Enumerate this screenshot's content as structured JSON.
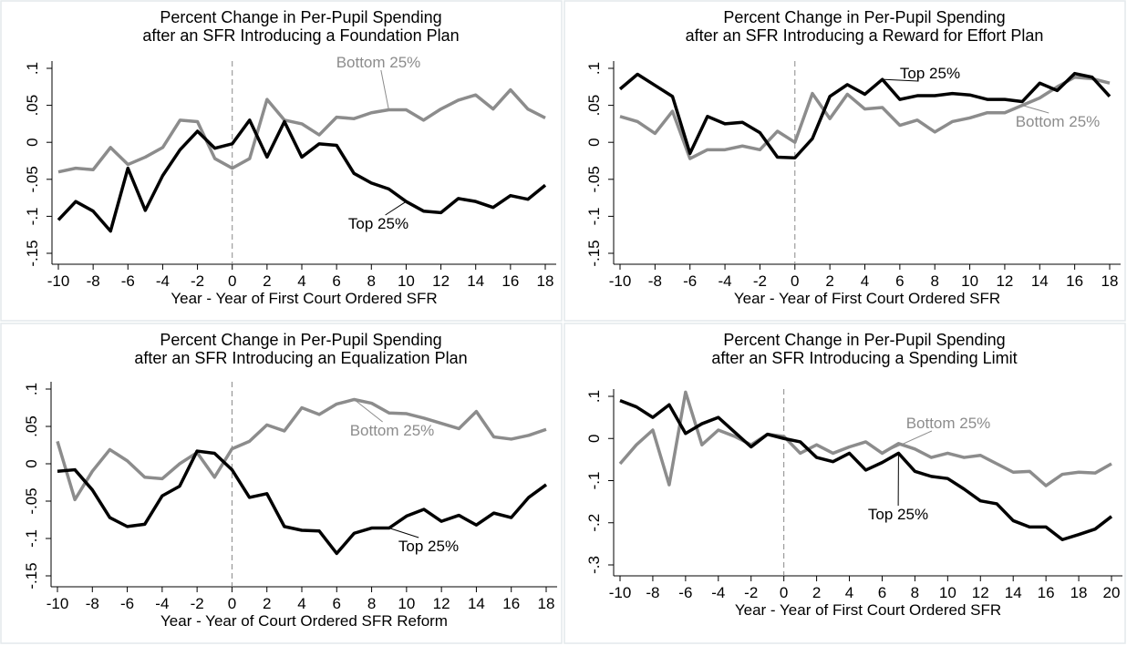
{
  "chart_data": [
    {
      "type": "line",
      "title": [
        "Percent Change in Per-Pupil Spending",
        "after an SFR Introducing a Foundation Plan"
      ],
      "xlabel": "Year - Year of First Court Ordered SFR",
      "x": [
        -10,
        -9,
        -8,
        -7,
        -6,
        -5,
        -4,
        -3,
        -2,
        -1,
        0,
        1,
        2,
        3,
        4,
        5,
        6,
        7,
        8,
        9,
        10,
        11,
        12,
        13,
        14,
        15,
        16,
        17,
        18
      ],
      "xlim": [
        -10,
        18
      ],
      "xticks": [
        -10,
        -8,
        -6,
        -4,
        -2,
        0,
        2,
        4,
        6,
        8,
        10,
        12,
        14,
        16,
        18
      ],
      "ylim": [
        -0.15,
        0.1
      ],
      "yticks": [
        {
          "value": -0.15,
          "label": "-.15"
        },
        {
          "value": -0.1,
          "label": "-.1"
        },
        {
          "value": -0.05,
          "label": "-.05"
        },
        0,
        {
          "value": 0.05,
          "label": ".05"
        },
        {
          "value": 0.1,
          "label": ".1"
        }
      ],
      "vline": 0,
      "series": [
        {
          "name": "Bottom 25%",
          "color": "#8c8c8c",
          "values": [
            -0.04,
            -0.035,
            -0.037,
            -0.007,
            -0.03,
            -0.02,
            -0.007,
            0.03,
            0.028,
            -0.022,
            -0.035,
            -0.022,
            0.058,
            0.03,
            0.025,
            0.01,
            0.034,
            0.032,
            0.04,
            0.044,
            0.044,
            0.03,
            0.045,
            0.057,
            0.064,
            0.045,
            0.071,
            0.045,
            0.033
          ]
        },
        {
          "name": "Top 25%",
          "color": "#000000",
          "values": [
            -0.105,
            -0.08,
            -0.093,
            -0.12,
            -0.035,
            -0.092,
            -0.045,
            -0.01,
            0.015,
            -0.008,
            -0.002,
            0.03,
            -0.02,
            0.028,
            -0.02,
            -0.002,
            -0.004,
            -0.042,
            -0.055,
            -0.063,
            -0.08,
            -0.093,
            -0.095,
            -0.076,
            -0.08,
            -0.088,
            -0.072,
            -0.077,
            -0.058
          ]
        }
      ]
    },
    {
      "type": "line",
      "title": [
        "Percent Change in Per-Pupil Spending",
        "after an SFR Introducing a Reward for Effort Plan"
      ],
      "xlabel": "Year - Year of First Court Ordered SFR",
      "x": [
        -10,
        -9,
        -8,
        -7,
        -6,
        -5,
        -4,
        -3,
        -2,
        -1,
        0,
        1,
        2,
        3,
        4,
        5,
        6,
        7,
        8,
        9,
        10,
        11,
        12,
        13,
        14,
        15,
        16,
        17,
        18
      ],
      "xlim": [
        -10,
        18
      ],
      "xticks": [
        -10,
        -8,
        -6,
        -4,
        -2,
        0,
        2,
        4,
        6,
        8,
        10,
        12,
        14,
        16,
        18
      ],
      "ylim": [
        -0.15,
        0.1
      ],
      "yticks": [
        {
          "value": -0.15,
          "label": "-.15"
        },
        {
          "value": -0.1,
          "label": "-.1"
        },
        {
          "value": -0.05,
          "label": "-.05"
        },
        0,
        {
          "value": 0.05,
          "label": ".05"
        },
        {
          "value": 0.1,
          "label": ".1"
        }
      ],
      "vline": 0,
      "series": [
        {
          "name": "Bottom 25%",
          "color": "#8c8c8c",
          "values": [
            0.035,
            0.028,
            0.012,
            0.042,
            -0.022,
            -0.01,
            -0.01,
            -0.005,
            -0.01,
            0.015,
            0.0,
            0.066,
            0.032,
            0.065,
            0.045,
            0.047,
            0.023,
            0.03,
            0.014,
            0.028,
            0.033,
            0.04,
            0.04,
            0.05,
            0.06,
            0.075,
            0.088,
            0.086,
            0.08
          ]
        },
        {
          "name": "Top 25%",
          "color": "#000000",
          "values": [
            0.072,
            0.092,
            0.077,
            0.062,
            -0.015,
            0.035,
            0.025,
            0.027,
            0.013,
            -0.02,
            -0.021,
            0.005,
            0.062,
            0.078,
            0.065,
            0.085,
            0.058,
            0.063,
            0.063,
            0.066,
            0.064,
            0.058,
            0.058,
            0.055,
            0.08,
            0.07,
            0.093,
            0.088,
            0.062
          ]
        }
      ]
    },
    {
      "type": "line",
      "title": [
        "Percent Change in Per-Pupil Spending",
        "after an SFR Introducing an Equalization Plan"
      ],
      "xlabel": "Year - Year of Court Ordered SFR Reform",
      "x": [
        -10,
        -9,
        -8,
        -7,
        -6,
        -5,
        -4,
        -3,
        -2,
        -1,
        0,
        1,
        2,
        3,
        4,
        5,
        6,
        7,
        8,
        9,
        10,
        11,
        12,
        13,
        14,
        15,
        16,
        17,
        18
      ],
      "xlim": [
        -10,
        18
      ],
      "xticks": [
        -10,
        -8,
        -6,
        -4,
        -2,
        0,
        2,
        4,
        6,
        8,
        10,
        12,
        14,
        16,
        18
      ],
      "ylim": [
        -0.15,
        0.1
      ],
      "yticks": [
        {
          "value": -0.15,
          "label": "-.15"
        },
        {
          "value": -0.1,
          "label": "-.1"
        },
        {
          "value": -0.05,
          "label": "-.05"
        },
        0,
        {
          "value": 0.05,
          "label": ".05"
        },
        {
          "value": 0.1,
          "label": ".1"
        }
      ],
      "vline": 0,
      "series": [
        {
          "name": "Bottom 25%",
          "color": "#8c8c8c",
          "values": [
            0.03,
            -0.048,
            -0.01,
            0.019,
            0.004,
            -0.018,
            -0.02,
            0.0,
            0.015,
            -0.018,
            0.02,
            0.03,
            0.052,
            0.044,
            0.075,
            0.066,
            0.08,
            0.086,
            0.081,
            0.068,
            0.067,
            0.061,
            0.054,
            0.047,
            0.07,
            0.036,
            0.033,
            0.038,
            0.046
          ]
        },
        {
          "name": "Top 25%",
          "color": "#000000",
          "values": [
            -0.01,
            -0.008,
            -0.035,
            -0.072,
            -0.084,
            -0.081,
            -0.043,
            -0.03,
            0.017,
            0.014,
            -0.008,
            -0.045,
            -0.04,
            -0.084,
            -0.089,
            -0.09,
            -0.12,
            -0.093,
            -0.086,
            -0.086,
            -0.07,
            -0.061,
            -0.077,
            -0.069,
            -0.082,
            -0.066,
            -0.072,
            -0.045,
            -0.028
          ]
        }
      ]
    },
    {
      "type": "line",
      "title": [
        "Percent Change in Per-Pupil Spending",
        "after an SFR Introducing a Spending Limit"
      ],
      "xlabel": "Year - Year of First Court Ordered SFR",
      "x": [
        -10,
        -9,
        -8,
        -7,
        -6,
        -5,
        -4,
        -3,
        -2,
        -1,
        0,
        1,
        2,
        3,
        4,
        5,
        6,
        7,
        8,
        9,
        10,
        11,
        12,
        13,
        14,
        15,
        16,
        17,
        18,
        19,
        20
      ],
      "xlim": [
        -10,
        20
      ],
      "xticks": [
        -10,
        -8,
        -6,
        -4,
        -2,
        0,
        2,
        4,
        6,
        8,
        10,
        12,
        14,
        16,
        18,
        20
      ],
      "ylim": [
        -0.3,
        0.1
      ],
      "yticks": [
        {
          "value": -0.3,
          "label": "-.3"
        },
        {
          "value": -0.2,
          "label": "-.2"
        },
        {
          "value": -0.1,
          "label": "-.1"
        },
        0,
        {
          "value": 0.1,
          "label": ".1"
        }
      ],
      "vline": 0,
      "series": [
        {
          "name": "Bottom 25%",
          "color": "#8c8c8c",
          "values": [
            -0.06,
            -0.015,
            0.02,
            -0.11,
            0.11,
            -0.015,
            0.02,
            0.005,
            -0.015,
            0.01,
            0.005,
            -0.035,
            -0.015,
            -0.035,
            -0.02,
            -0.008,
            -0.035,
            -0.012,
            -0.025,
            -0.045,
            -0.035,
            -0.045,
            -0.04,
            -0.06,
            -0.08,
            -0.078,
            -0.112,
            -0.085,
            -0.08,
            -0.082,
            -0.06
          ]
        },
        {
          "name": "Top 25%",
          "color": "#000000",
          "values": [
            0.09,
            0.075,
            0.05,
            0.08,
            0.012,
            0.035,
            0.05,
            0.015,
            -0.02,
            0.01,
            0.0,
            -0.008,
            -0.045,
            -0.055,
            -0.035,
            -0.075,
            -0.057,
            -0.035,
            -0.078,
            -0.09,
            -0.095,
            -0.12,
            -0.148,
            -0.155,
            -0.195,
            -0.21,
            -0.21,
            -0.24,
            -0.228,
            -0.215,
            -0.185
          ]
        }
      ]
    }
  ]
}
